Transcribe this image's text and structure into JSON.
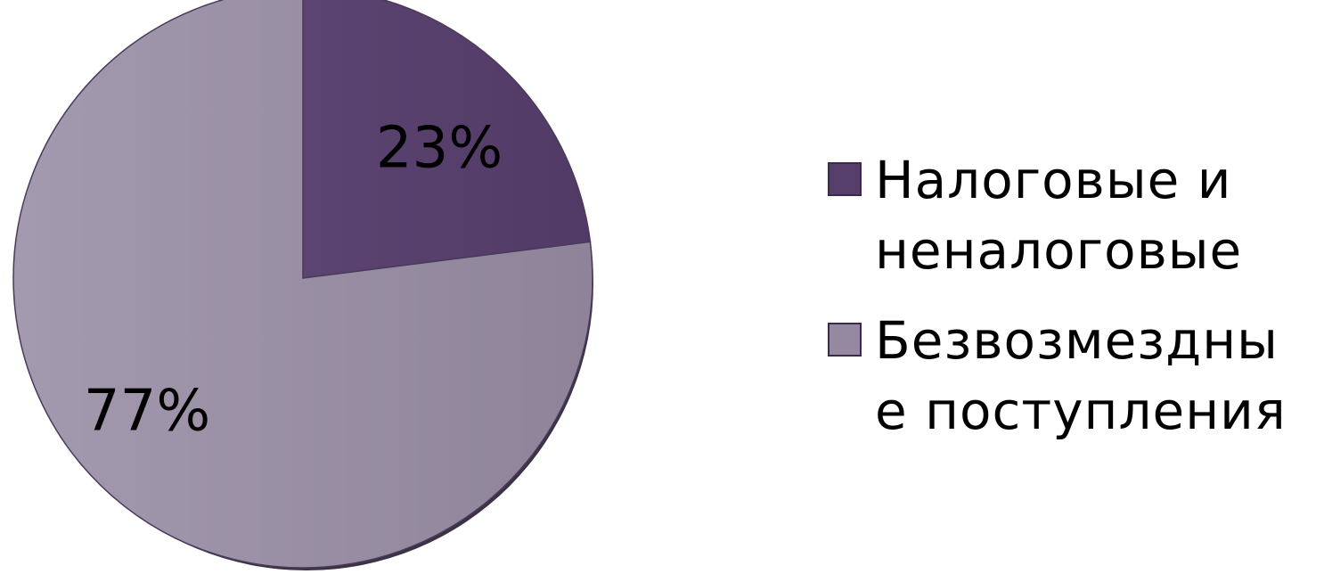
{
  "chart_data": {
    "type": "pie",
    "categories": [
      "Налоговые и неналоговые",
      "Безвозмездные поступления"
    ],
    "values": [
      23,
      77
    ],
    "labels": [
      "23%",
      "77%"
    ],
    "colors": [
      "#573f6c",
      "#9489a1"
    ],
    "legend": {
      "position": "right",
      "entries": [
        [
          "Налоговые и",
          "неналоговые"
        ],
        [
          "Безвозмездны",
          "е поступления"
        ]
      ]
    }
  }
}
